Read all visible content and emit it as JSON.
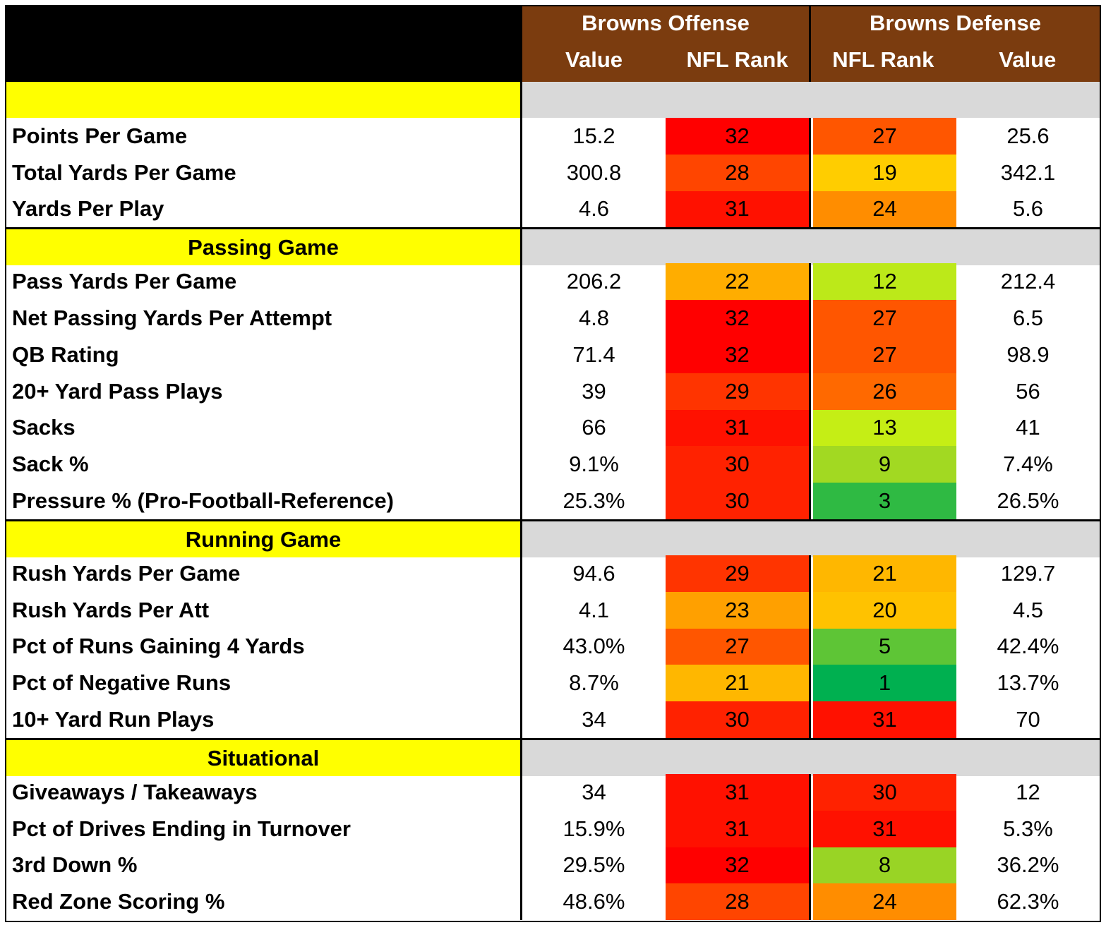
{
  "header": {
    "offense_title": "Browns Offense",
    "defense_title": "Browns Defense",
    "offense_value_label": "Value",
    "offense_rank_label": "NFL Rank",
    "defense_rank_label": "NFL Rank",
    "defense_value_label": "Value"
  },
  "colors": {
    "header_bg": "#7b3c0f",
    "section_yellow": "#ffff00",
    "section_gray": "#d9d9d9"
  },
  "chart_data": {
    "type": "table",
    "columns": [
      "",
      "Browns Offense Value",
      "Browns Offense NFL Rank",
      "Browns Defense NFL Rank",
      "Browns Defense Value"
    ],
    "sections": [
      {
        "name": "",
        "rows": [
          {
            "label": "Points Per Game",
            "off_value": "15.2",
            "off_rank": "32",
            "def_rank": "27",
            "def_value": "25.6"
          },
          {
            "label": "Total Yards Per Game",
            "off_value": "300.8",
            "off_rank": "28",
            "def_rank": "19",
            "def_value": "342.1"
          },
          {
            "label": "Yards Per Play",
            "off_value": "4.6",
            "off_rank": "31",
            "def_rank": "24",
            "def_value": "5.6"
          }
        ]
      },
      {
        "name": "Passing Game",
        "rows": [
          {
            "label": "Pass Yards Per Game",
            "off_value": "206.2",
            "off_rank": "22",
            "def_rank": "12",
            "def_value": "212.4"
          },
          {
            "label": "Net Passing Yards Per Attempt",
            "off_value": "4.8",
            "off_rank": "32",
            "def_rank": "27",
            "def_value": "6.5"
          },
          {
            "label": "QB Rating",
            "off_value": "71.4",
            "off_rank": "32",
            "def_rank": "27",
            "def_value": "98.9"
          },
          {
            "label": "20+ Yard Pass Plays",
            "off_value": "39",
            "off_rank": "29",
            "def_rank": "26",
            "def_value": "56"
          },
          {
            "label": "Sacks",
            "off_value": "66",
            "off_rank": "31",
            "def_rank": "13",
            "def_value": "41"
          },
          {
            "label": "Sack %",
            "off_value": "9.1%",
            "off_rank": "30",
            "def_rank": "9",
            "def_value": "7.4%"
          },
          {
            "label": "Pressure % (Pro-Football-Reference)",
            "off_value": "25.3%",
            "off_rank": "30",
            "def_rank": "3",
            "def_value": "26.5%"
          }
        ]
      },
      {
        "name": "Running Game",
        "rows": [
          {
            "label": "Rush Yards Per Game",
            "off_value": "94.6",
            "off_rank": "29",
            "def_rank": "21",
            "def_value": "129.7"
          },
          {
            "label": "Rush Yards Per Att",
            "off_value": "4.1",
            "off_rank": "23",
            "def_rank": "20",
            "def_value": "4.5"
          },
          {
            "label": "Pct of Runs Gaining 4 Yards",
            "off_value": "43.0%",
            "off_rank": "27",
            "def_rank": "5",
            "def_value": "42.4%"
          },
          {
            "label": "Pct of Negative Runs",
            "off_value": "8.7%",
            "off_rank": "21",
            "def_rank": "1",
            "def_value": "13.7%"
          },
          {
            "label": "10+ Yard Run Plays",
            "off_value": "34",
            "off_rank": "30",
            "def_rank": "31",
            "def_value": "70"
          }
        ]
      },
      {
        "name": "Situational",
        "rows": [
          {
            "label": "Giveaways / Takeaways",
            "off_value": "34",
            "off_rank": "31",
            "def_rank": "30",
            "def_value": "12"
          },
          {
            "label": "Pct of Drives Ending in Turnover",
            "off_value": "15.9%",
            "off_rank": "31",
            "def_rank": "31",
            "def_value": "5.3%"
          },
          {
            "label": "3rd Down %",
            "off_value": "29.5%",
            "off_rank": "32",
            "def_rank": "8",
            "def_value": "36.2%"
          },
          {
            "label": "Red Zone Scoring %",
            "off_value": "48.6%",
            "off_rank": "28",
            "def_rank": "24",
            "def_value": "62.3%"
          }
        ]
      }
    ]
  }
}
